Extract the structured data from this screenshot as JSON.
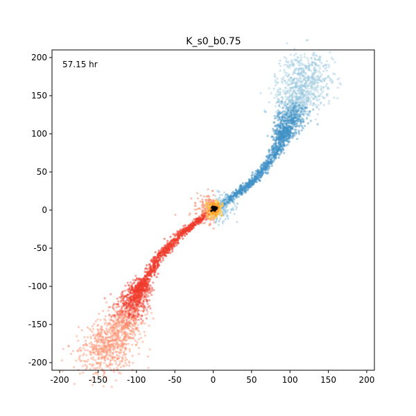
{
  "chart_data": {
    "type": "scatter",
    "title": "K_s0_b0.75",
    "annotation": "57.15 hr",
    "xlabel": "",
    "ylabel": "",
    "xlim": [
      -210,
      210
    ],
    "ylim": [
      -210,
      210
    ],
    "x_ticks": [
      -200,
      -150,
      -100,
      -50,
      0,
      50,
      100,
      150,
      200
    ],
    "y_ticks": [
      -200,
      -150,
      -100,
      -50,
      0,
      50,
      100,
      150,
      200
    ],
    "grid": false,
    "legend": "none",
    "colors": {
      "upper_tail": "#4292c6",
      "upper_tail_diffuse": "#9ecae1",
      "lower_tail": "#ef3b2c",
      "lower_tail_diffuse": "#fc9272",
      "core_outer": "#fec44f",
      "core_mid": "#fe9929",
      "core_inner": "#000000"
    },
    "series": [
      {
        "group": "upper_tail_spine",
        "points": [
          [
            0,
            0
          ],
          [
            8,
            4
          ],
          [
            18,
            12
          ],
          [
            30,
            21
          ],
          [
            45,
            32
          ],
          [
            58,
            44
          ],
          [
            70,
            58
          ],
          [
            80,
            74
          ],
          [
            88,
            90
          ],
          [
            94,
            104
          ],
          [
            100,
            118
          ],
          [
            106,
            132
          ],
          [
            112,
            146
          ],
          [
            116,
            160
          ],
          [
            119,
            174
          ],
          [
            121,
            186
          ]
        ]
      },
      {
        "group": "upper_tail_blob",
        "center": [
          102,
          140
        ],
        "extent": [
          [
            75,
            95
          ],
          [
            125,
            195
          ]
        ]
      },
      {
        "group": "lower_tail_spine",
        "points": [
          [
            0,
            0
          ],
          [
            -8,
            -5
          ],
          [
            -18,
            -13
          ],
          [
            -30,
            -22
          ],
          [
            -45,
            -34
          ],
          [
            -58,
            -48
          ],
          [
            -70,
            -62
          ],
          [
            -80,
            -78
          ],
          [
            -90,
            -94
          ],
          [
            -98,
            -108
          ],
          [
            -106,
            -124
          ],
          [
            -114,
            -140
          ],
          [
            -122,
            -156
          ],
          [
            -132,
            -172
          ],
          [
            -142,
            -186
          ],
          [
            -147,
            -195
          ]
        ]
      },
      {
        "group": "lower_tail_blob",
        "center": [
          -115,
          -145
        ],
        "extent": [
          [
            -150,
            -195
          ],
          [
            -68,
            -95
          ]
        ]
      },
      {
        "group": "core",
        "center": [
          2,
          2
        ],
        "radius": 12
      }
    ]
  }
}
